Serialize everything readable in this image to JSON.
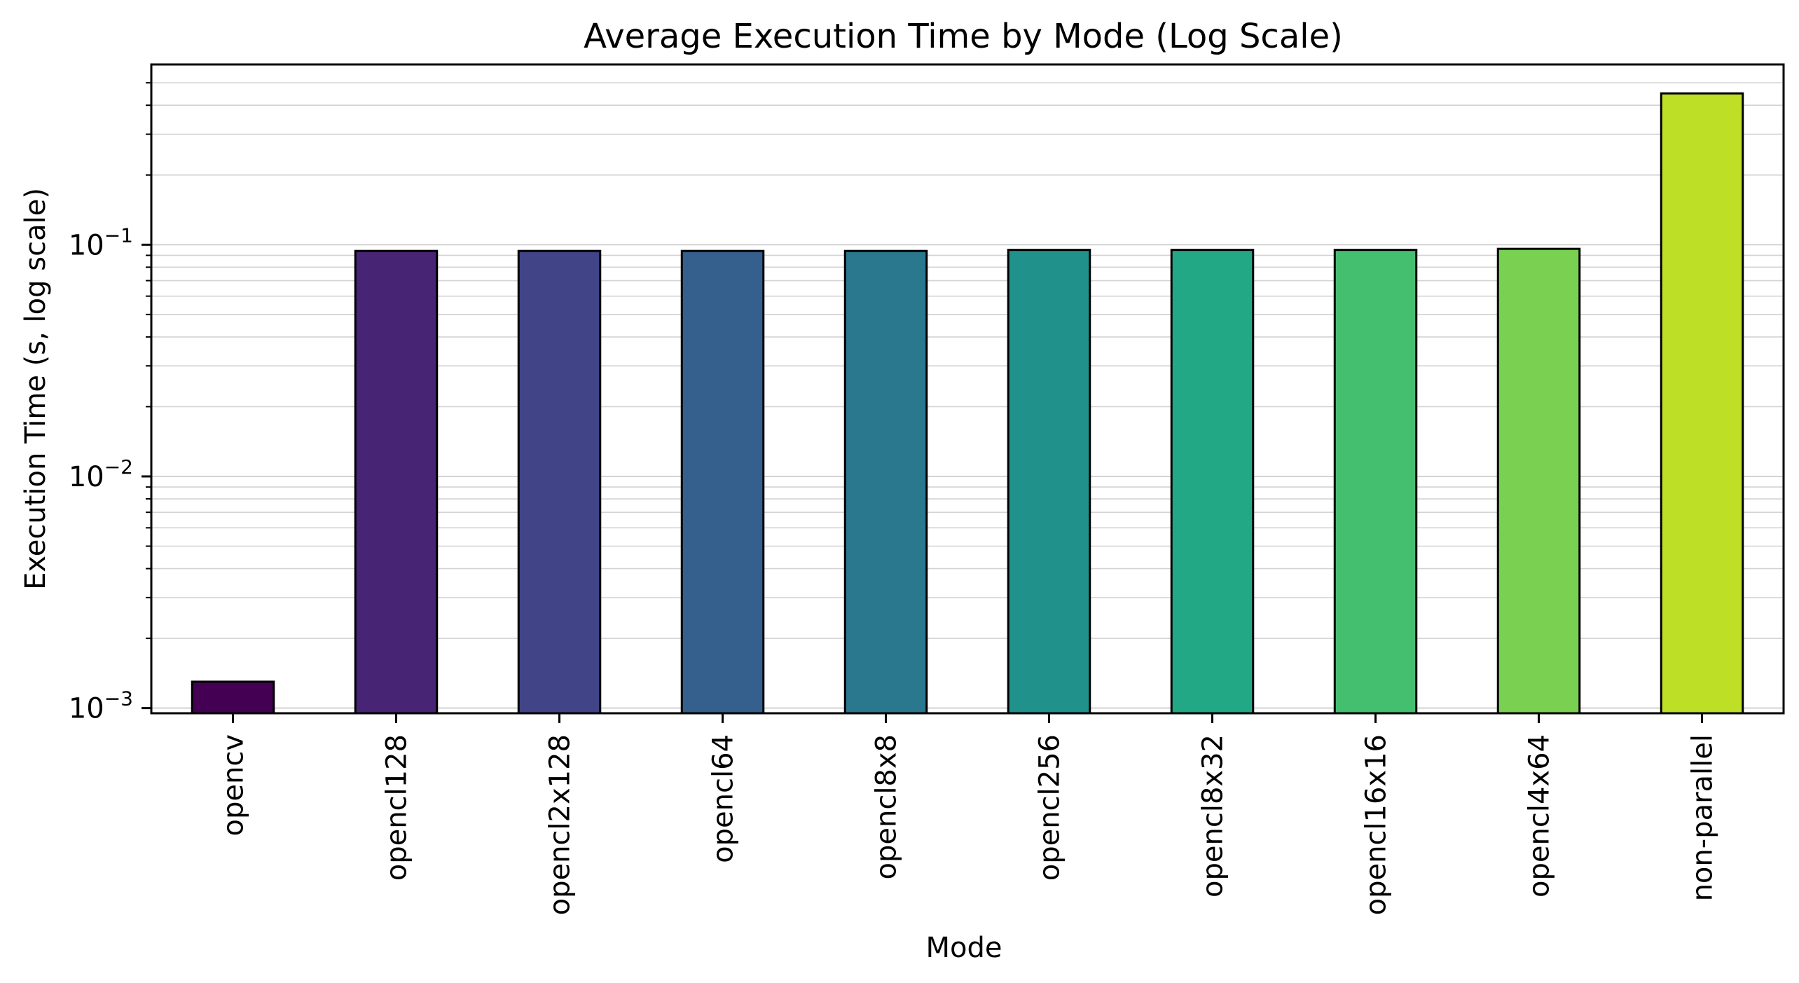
{
  "chart_data": {
    "type": "bar",
    "title": "Average Execution Time by Mode (Log Scale)",
    "xlabel": "Mode",
    "ylabel": "Execution Time (s, log scale)",
    "yscale": "log",
    "ylim": [
      0.00095,
      0.6
    ],
    "yticks": [
      {
        "value": 0.001,
        "base": "10",
        "exp": "−3"
      },
      {
        "value": 0.01,
        "base": "10",
        "exp": "−2"
      },
      {
        "value": 0.1,
        "base": "10",
        "exp": "−1"
      }
    ],
    "grid": "y (major and minor)",
    "categories": [
      "opencv",
      "opencl128",
      "opencl2x128",
      "opencl64",
      "opencl8x8",
      "opencl256",
      "opencl8x32",
      "opencl16x16",
      "opencl4x64",
      "non-parallel"
    ],
    "values": [
      0.0013,
      0.094,
      0.094,
      0.094,
      0.094,
      0.095,
      0.095,
      0.095,
      0.096,
      0.45
    ],
    "colors": [
      "#440154",
      "#482475",
      "#414487",
      "#355f8d",
      "#2a788e",
      "#21918c",
      "#22a884",
      "#44bf70",
      "#7ad151",
      "#bddf26"
    ]
  }
}
